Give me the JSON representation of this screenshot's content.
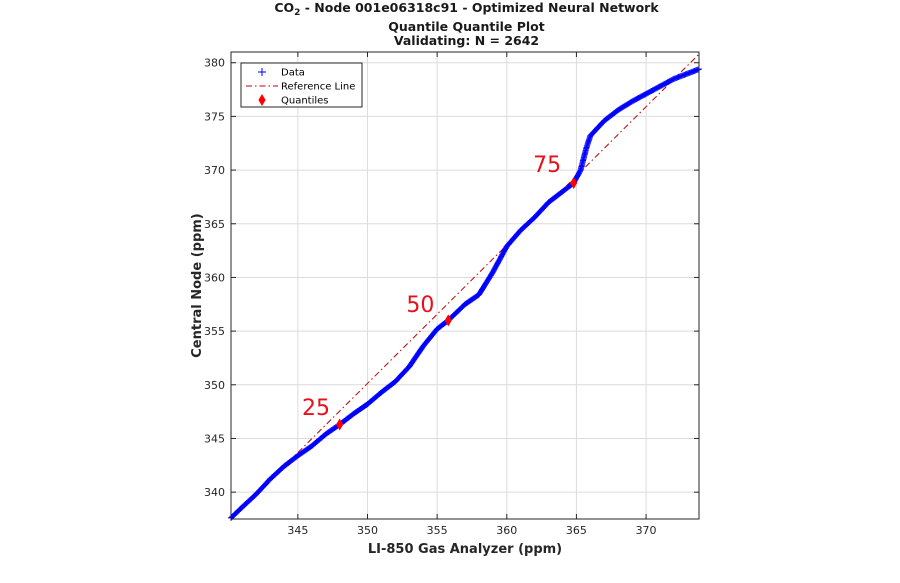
{
  "title": {
    "line1_prefix": "CO",
    "line1_sub": "2",
    "line1_suffix": " - Node 001e06318c91 - Optimized Neural Network",
    "line2": "Quantile Quantile Plot",
    "line3": "Validating: N = 2642"
  },
  "chart_data": {
    "type": "scatter",
    "title": "CO2 - Node 001e06318c91 - Optimized Neural Network / Quantile Quantile Plot / Validating: N = 2642",
    "xlabel": "LI-850 Gas Analyzer (ppm)",
    "ylabel": "Central Node (ppm)",
    "xlim": [
      340.2,
      373.8
    ],
    "ylim": [
      337.5,
      381
    ],
    "xticks": [
      345,
      350,
      355,
      360,
      365,
      370
    ],
    "yticks": [
      340,
      345,
      350,
      355,
      360,
      365,
      370,
      375,
      380
    ],
    "grid": true,
    "legend_position": "top-left",
    "series": [
      {
        "name": "Data",
        "marker": "+",
        "color": "#0000ff",
        "x": [
          340.2,
          341.0,
          342.0,
          343.0,
          344.0,
          345.0,
          346.0,
          347.0,
          348.0,
          349.0,
          350.0,
          351.0,
          352.0,
          353.0,
          354.0,
          355.0,
          355.8,
          357.0,
          358.0,
          359.0,
          360.0,
          361.0,
          362.0,
          363.0,
          364.0,
          364.8,
          365.3,
          365.7,
          366.0,
          367.0,
          368.0,
          369.0,
          370.0,
          371.0,
          372.0,
          373.0,
          373.8
        ],
        "y": [
          337.6,
          338.6,
          339.8,
          341.2,
          342.4,
          343.4,
          344.3,
          345.4,
          346.3,
          347.3,
          348.2,
          349.3,
          350.3,
          351.7,
          353.6,
          355.2,
          356.0,
          357.5,
          358.4,
          360.5,
          362.9,
          364.4,
          365.6,
          367.0,
          368.0,
          368.8,
          370.0,
          372.0,
          373.2,
          374.6,
          375.6,
          376.4,
          377.1,
          377.8,
          378.5,
          379.0,
          379.4
        ]
      },
      {
        "name": "Reference Line",
        "style": "dash-dot",
        "color": "#c00000",
        "x": [
          340.2,
          373.8
        ],
        "y": [
          336.3,
          380.8
        ]
      },
      {
        "name": "Quantiles",
        "marker": "diamond",
        "color": "#ff0000",
        "x": [
          348.0,
          355.8,
          364.8
        ],
        "y": [
          346.3,
          356.0,
          368.8
        ]
      }
    ],
    "annotations": [
      {
        "text": "25",
        "x": 346.3,
        "y": 347.2
      },
      {
        "text": "50",
        "x": 353.8,
        "y": 356.8
      },
      {
        "text": "75",
        "x": 362.9,
        "y": 369.8
      }
    ]
  },
  "colors": {
    "data": "#0000ff",
    "reference": "#c00000",
    "quantile": "#ff0000",
    "annotation": "#e8101a",
    "grid": "#dcdcdc",
    "axis": "#262626"
  }
}
